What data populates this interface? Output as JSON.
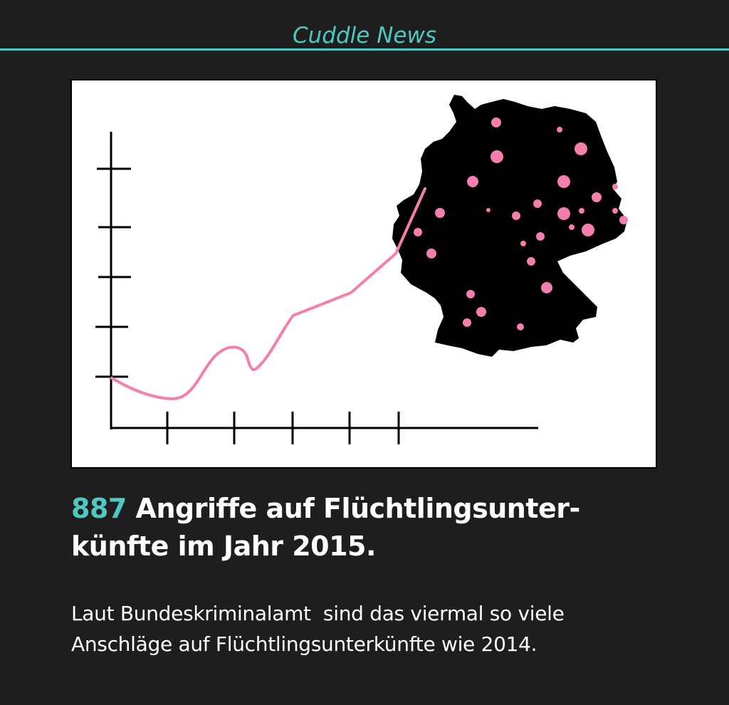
{
  "brand": {
    "name": "Cuddle News",
    "accent_color": "#4ec9c2"
  },
  "illustration": {
    "line_color": "#f47fae",
    "dot_color": "#f47fae",
    "map_color": "#000000",
    "map_icon": "germany-map-icon"
  },
  "headline": {
    "number": "887",
    "line1_rest": " Angriffe auf Flüchtlingsunter-",
    "line2": "künfte im Jahr 2015."
  },
  "body": {
    "line1": "Laut Bundeskriminalamt  sind das viermal so viele",
    "line2": "Anschläge auf Flüchtlingsunterkünfte wie 2014."
  }
}
